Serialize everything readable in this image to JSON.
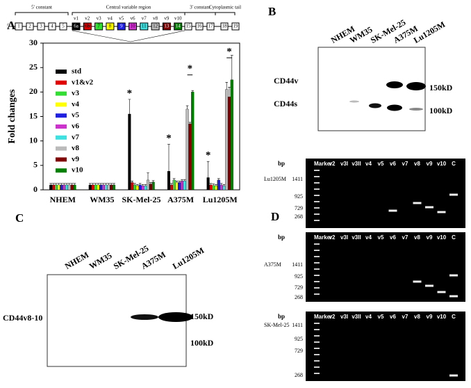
{
  "panel_labels": [
    "A",
    "B",
    "C",
    "D"
  ],
  "gene_map": {
    "ends": [
      "5'",
      "3'"
    ],
    "regions": [
      "5' constant",
      "Central variable region",
      "3' constant",
      "Cytoplasmic tail"
    ],
    "const_left": [
      "1",
      "2",
      "3",
      "4",
      "5"
    ],
    "variant_names": [
      "v1",
      "v2",
      "v3",
      "v4",
      "v5",
      "v6",
      "v7",
      "v8",
      "v9",
      "v10"
    ],
    "variant_exons": [
      "6a",
      "6b",
      "7",
      "8",
      "9",
      "10",
      "11",
      "12",
      "13",
      "14"
    ],
    "const_right": [
      "15",
      "16",
      "17",
      "18",
      "19"
    ]
  },
  "chart_data": {
    "type": "bar",
    "ylabel": "Fold changes",
    "categories": [
      "NHEM",
      "WM35",
      "SK-Mel-25",
      "A375M",
      "Lu1205M"
    ],
    "ylim": [
      0,
      30
    ],
    "yticks": [
      0,
      5,
      10,
      15,
      20,
      25,
      30
    ],
    "annotations": [
      "*",
      "*",
      "*",
      "*",
      "*"
    ],
    "series": [
      {
        "name": "std",
        "color": "#000000",
        "values": [
          1,
          1,
          15.5,
          3.8,
          2.5
        ],
        "errors": [
          0.3,
          0.3,
          3,
          5.5,
          3.3
        ]
      },
      {
        "name": "v1&v2",
        "color": "#e00000",
        "values": [
          1,
          1,
          1.5,
          1,
          1
        ],
        "errors": [
          0.3,
          0.3,
          0.3,
          0.3,
          0.3
        ]
      },
      {
        "name": "v3",
        "color": "#33dd33",
        "values": [
          1,
          1,
          1,
          2,
          0.9
        ],
        "errors": [
          0.3,
          0.3,
          0.3,
          0.3,
          0.3
        ]
      },
      {
        "name": "v4",
        "color": "#ffff00",
        "values": [
          1,
          1,
          0.8,
          1.5,
          0.8
        ],
        "errors": [
          0.3,
          0.3,
          0.3,
          0.3,
          0.3
        ]
      },
      {
        "name": "v5",
        "color": "#2020e0",
        "values": [
          1,
          1,
          1,
          1.5,
          2
        ],
        "errors": [
          0.3,
          0.3,
          0.3,
          0.3,
          0.3
        ]
      },
      {
        "name": "v6",
        "color": "#cc33cc",
        "values": [
          1,
          1,
          0.8,
          1.8,
          1
        ],
        "errors": [
          0.3,
          0.3,
          0.3,
          0.3,
          0.3
        ]
      },
      {
        "name": "v7",
        "color": "#40e0e0",
        "values": [
          1,
          1,
          0.8,
          1.8,
          0.8
        ],
        "errors": [
          0.3,
          0.3,
          0.3,
          0.3,
          0.3
        ]
      },
      {
        "name": "v8",
        "color": "#bbbbbb",
        "values": [
          1,
          1,
          2,
          16.5,
          20.5
        ],
        "errors": [
          0.3,
          0.3,
          1.5,
          0.7,
          1.5
        ]
      },
      {
        "name": "v9",
        "color": "#800000",
        "values": [
          1,
          1,
          1.2,
          13.5,
          19
        ],
        "errors": [
          0.3,
          0.3,
          0.3,
          0.3,
          2
        ]
      },
      {
        "name": "v10",
        "color": "#008000",
        "values": [
          1,
          1,
          1.6,
          20,
          22.5
        ],
        "errors": [
          0.3,
          0.3,
          0.3,
          0.3,
          5
        ]
      }
    ]
  },
  "blot_b": {
    "lanes": [
      "NHEM",
      "WM35",
      "SK-Mel-25",
      "A375M",
      "Lu1205M"
    ],
    "bands": [
      "CD44v",
      "CD44s"
    ],
    "sizes": [
      "150kD",
      "100kD"
    ]
  },
  "blot_c": {
    "lanes": [
      "NHEM",
      "WM35",
      "SK-Mel-25",
      "A375M",
      "Lu1205M"
    ],
    "band": "CD44v8-10",
    "sizes": [
      "150kD",
      "100kD"
    ]
  },
  "gels": {
    "unit": "bp",
    "lanes": [
      "Marker",
      "v2",
      "v3I",
      "v3II",
      "v4",
      "v5",
      "v6",
      "v7",
      "v8",
      "v9",
      "v10",
      "C"
    ],
    "panels": [
      {
        "cell": "Lu1205M",
        "sizes": [
          1411,
          925,
          729,
          268
        ]
      },
      {
        "cell": "A375M",
        "sizes": [
          1411,
          925,
          729,
          268
        ]
      },
      {
        "cell": "SK-Mel-25",
        "sizes": [
          1411,
          925,
          729,
          268
        ]
      }
    ]
  }
}
